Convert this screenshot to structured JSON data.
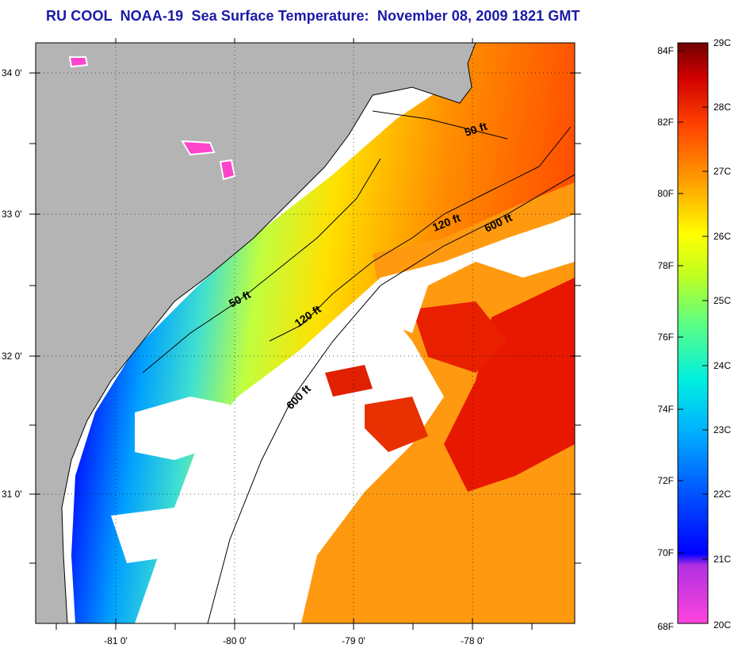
{
  "title": "RU COOL  NOAA-19  Sea Surface Temperature:  November 08, 2009 1821 GMT",
  "map": {
    "land_color": "#b4b4b4",
    "cloud_color": "#ffffff",
    "lat_labels": [
      "34 0'",
      "33 0'",
      "32 0'",
      "31 0'"
    ],
    "lon_labels": [
      "-81 0'",
      "-80 0'",
      "-79 0'",
      "-78 0'"
    ],
    "contours": [
      {
        "label": "50 ft"
      },
      {
        "label": "50 ft"
      },
      {
        "label": "120 ft"
      },
      {
        "label": "120 ft"
      },
      {
        "label": "600 ft"
      },
      {
        "label": "600 ft"
      }
    ]
  },
  "colorbar": {
    "fahrenheit_labels": [
      "84F",
      "82F",
      "80F",
      "78F",
      "76F",
      "74F",
      "72F",
      "70F",
      "68F"
    ],
    "celsius_labels": [
      "29C",
      "28C",
      "27C",
      "26C",
      "25C",
      "24C",
      "23C",
      "22C",
      "21C",
      "20C"
    ],
    "range_c": [
      20,
      29
    ],
    "range_f": [
      68,
      84.2
    ],
    "colors": [
      "#ff44cc",
      "#d040e0",
      "#0010ff",
      "#0060ff",
      "#00c0ff",
      "#40e0c0",
      "#a0ff40",
      "#ffff00",
      "#ffa000",
      "#ff3000",
      "#c00000",
      "#800000"
    ]
  }
}
